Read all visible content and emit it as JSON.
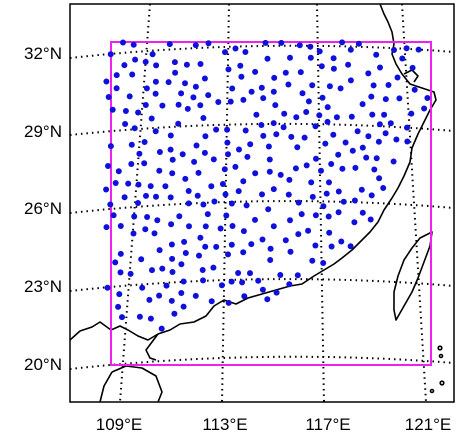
{
  "map": {
    "lat_labels": [
      "32°N",
      "29°N",
      "26°N",
      "23°N",
      "20°N"
    ],
    "lon_labels": [
      "109°E",
      "113°E",
      "117°E",
      "121°E"
    ],
    "colors": {
      "station": "#1010dd",
      "region_box": "#ee22ee",
      "graticule": "#000000",
      "coastline": "#000000",
      "frame": "#000000"
    },
    "stations_approx_count": 330,
    "graticule_style": "dotted",
    "icons": [
      "station-dot"
    ]
  }
}
